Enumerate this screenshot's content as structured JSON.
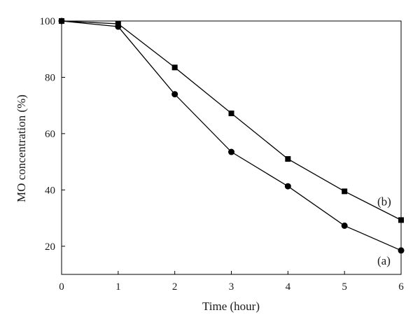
{
  "chart_data": {
    "type": "line",
    "xlabel": "Time (hour)",
    "ylabel": "MO concentration (%)",
    "xlim": [
      0,
      6
    ],
    "ylim": [
      10,
      100
    ],
    "xticks": [
      0,
      1,
      2,
      3,
      4,
      5,
      6
    ],
    "yticks": [
      20,
      40,
      60,
      80,
      100
    ],
    "grid": false,
    "series": [
      {
        "name": "(a)",
        "marker": "circle",
        "color": "#000000",
        "x": [
          0,
          1,
          2,
          3,
          4,
          5,
          6
        ],
        "y": [
          100,
          98,
          74,
          53.5,
          41.3,
          27.3,
          18.5
        ]
      },
      {
        "name": "(b)",
        "marker": "square",
        "color": "#000000",
        "x": [
          0,
          1,
          2,
          3,
          4,
          5,
          6
        ],
        "y": [
          100,
          99,
          83.5,
          67.2,
          51,
          39.5,
          29.3
        ]
      }
    ]
  }
}
